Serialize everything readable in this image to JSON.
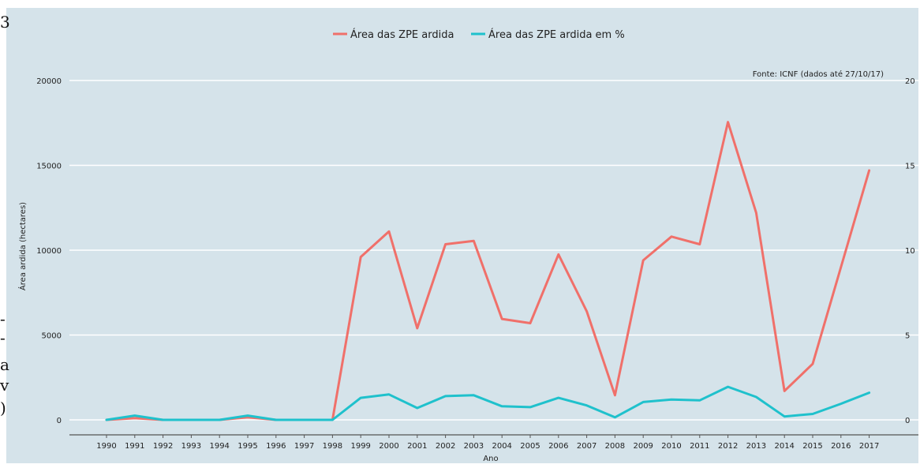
{
  "edge_fragments": [
    "3",
    "-",
    "-",
    "a",
    "v",
    ")"
  ],
  "colors": {
    "background": "#d5e3ea",
    "grid": "#ffffff",
    "axis": "#555555",
    "text": "#222222",
    "series_area": "#f0706a",
    "series_pct": "#1fc1cc"
  },
  "chart_data": {
    "type": "line",
    "title": "",
    "xlabel": "Ano",
    "ylabel": "Área ardida (hectares)",
    "annotation": "Fonte: ICNF (dados até 27/10/17)",
    "legend_position": "top-center",
    "grid": true,
    "x": [
      "1990",
      "1991",
      "1992",
      "1993",
      "1994",
      "1995",
      "1996",
      "1997",
      "1998",
      "1999",
      "2000",
      "2001",
      "2002",
      "2003",
      "2004",
      "2005",
      "2006",
      "2007",
      "2008",
      "2009",
      "2010",
      "2011",
      "2012",
      "2013",
      "2014",
      "2015",
      "2016",
      "2017"
    ],
    "ylim": [
      0,
      20000
    ],
    "yticks": [
      "0",
      "5000",
      "10000",
      "15000",
      "20000"
    ],
    "y2lim": [
      0,
      20
    ],
    "y2ticks": [
      "0",
      "5",
      "10",
      "15",
      "20"
    ],
    "series": [
      {
        "name": "Área das ZPE ardida",
        "axis": "left",
        "values": [
          0,
          100,
          0,
          0,
          0,
          150,
          0,
          0,
          0,
          9600,
          11100,
          5400,
          10350,
          10550,
          5950,
          5700,
          9750,
          6400,
          1450,
          9400,
          10800,
          10350,
          17550,
          12200,
          1700,
          3300,
          9000,
          14700
        ]
      },
      {
        "name": "Área das ZPE ardida em %",
        "axis": "right",
        "values": [
          0,
          0.25,
          0,
          0,
          0,
          0.25,
          0,
          0,
          0,
          1.3,
          1.5,
          0.7,
          1.4,
          1.45,
          0.8,
          0.75,
          1.3,
          0.85,
          0.15,
          1.05,
          1.2,
          1.15,
          1.95,
          1.35,
          0.2,
          0.35,
          0.95,
          1.6
        ]
      }
    ]
  }
}
